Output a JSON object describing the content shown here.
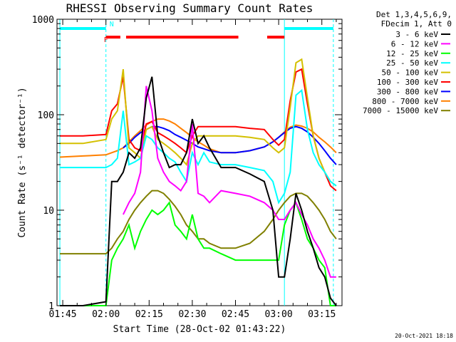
{
  "chart_data": {
    "type": "line",
    "title": "RHESSI Observing Summary Count Rates",
    "xlabel": "Start Time (28-Oct-02 01:43:22)",
    "ylabel": "Count Rate (s⁻¹ detector⁻¹)",
    "y_scale": "log",
    "ylim": [
      1,
      1000
    ],
    "xlim": [
      "01:43",
      "03:22"
    ],
    "x_ticks": [
      "01:45",
      "02:00",
      "02:15",
      "02:30",
      "02:45",
      "03:00",
      "03:15"
    ],
    "y_ticks": [
      "1",
      "10",
      "100",
      "1000"
    ],
    "legend_header": [
      "Det 1,3,4,5,6,9,",
      "FDecim 1, Att 0"
    ],
    "legend_position": "right",
    "grid": false,
    "series": [
      {
        "name": "3 - 6 keV",
        "color": "#000000",
        "x": [
          "01:44",
          "01:52",
          "02:00",
          "02:02",
          "02:04",
          "02:06",
          "02:08",
          "02:10",
          "02:12",
          "02:14",
          "02:16",
          "02:18",
          "02:20",
          "02:22",
          "02:24",
          "02:26",
          "02:28",
          "02:30",
          "02:32",
          "02:34",
          "02:36",
          "02:40",
          "02:45",
          "02:50",
          "02:55",
          "02:58",
          "03:00",
          "03:02",
          "03:04",
          "03:06",
          "03:08",
          "03:10",
          "03:12",
          "03:14",
          "03:16",
          "03:18",
          "03:20"
        ],
        "y": [
          1,
          1,
          1.1,
          20,
          20,
          25,
          40,
          35,
          45,
          150,
          250,
          60,
          40,
          28,
          30,
          30,
          40,
          90,
          50,
          60,
          45,
          28,
          28,
          24,
          20,
          10,
          2,
          2,
          5,
          15,
          10,
          6,
          4,
          2.5,
          2,
          1.2,
          1
        ]
      },
      {
        "name": "6 - 12 keV",
        "color": "#ff00ff",
        "x": [
          "01:44",
          "01:52",
          "02:00",
          "02:02",
          "02:04",
          "02:06",
          "02:08",
          "02:10",
          "02:12",
          "02:14",
          "02:16",
          "02:18",
          "02:20",
          "02:22",
          "02:24",
          "02:26",
          "02:28",
          "02:30",
          "02:32",
          "02:34",
          "02:36",
          "02:40",
          "02:45",
          "02:50",
          "02:55",
          "02:58",
          "03:00",
          "03:02",
          "03:04",
          "03:06",
          "03:08",
          "03:10",
          "03:12",
          "03:14",
          "03:16",
          "03:18",
          "03:20"
        ],
        "y": [
          null,
          null,
          null,
          null,
          null,
          9,
          12,
          15,
          25,
          200,
          110,
          35,
          25,
          20,
          18,
          16,
          20,
          80,
          15,
          14,
          12,
          16,
          15,
          14,
          12,
          10,
          8,
          8,
          10,
          12,
          9,
          7,
          5,
          4,
          3,
          2,
          2
        ]
      },
      {
        "name": "12 - 25 keV",
        "color": "#00ff00",
        "x": [
          "01:44",
          "01:52",
          "02:00",
          "02:02",
          "02:04",
          "02:06",
          "02:08",
          "02:10",
          "02:12",
          "02:14",
          "02:16",
          "02:18",
          "02:20",
          "02:22",
          "02:24",
          "02:26",
          "02:28",
          "02:30",
          "02:32",
          "02:34",
          "02:36",
          "02:40",
          "02:45",
          "02:50",
          "02:55",
          "02:58",
          "03:00",
          "03:02",
          "03:04",
          "03:06",
          "03:08",
          "03:10",
          "03:12",
          "03:14",
          "03:16",
          "03:18",
          "03:20"
        ],
        "y": [
          1,
          1,
          1,
          3,
          4,
          5,
          7,
          4,
          6,
          8,
          10,
          9,
          10,
          12,
          7,
          6,
          5,
          9,
          5,
          4,
          4,
          3.5,
          3,
          3,
          3,
          3,
          3,
          7,
          10,
          12,
          8,
          5,
          4,
          3,
          2.5,
          1,
          1
        ]
      },
      {
        "name": "25 - 50 keV",
        "color": "#00ffff",
        "x": [
          "01:44",
          "01:52",
          "02:00",
          "02:02",
          "02:04",
          "02:06",
          "02:08",
          "02:10",
          "02:12",
          "02:14",
          "02:16",
          "02:18",
          "02:20",
          "02:22",
          "02:24",
          "02:26",
          "02:28",
          "02:30",
          "02:32",
          "02:34",
          "02:36",
          "02:40",
          "02:45",
          "02:50",
          "02:55",
          "02:58",
          "03:00",
          "03:02",
          "03:04",
          "03:06",
          "03:08",
          "03:10",
          "03:12",
          "03:14",
          "03:16",
          "03:18",
          "03:20"
        ],
        "y": [
          28,
          28,
          28,
          30,
          35,
          110,
          30,
          32,
          35,
          60,
          55,
          45,
          40,
          35,
          32,
          25,
          20,
          40,
          30,
          40,
          32,
          30,
          30,
          28,
          26,
          20,
          12,
          15,
          25,
          160,
          180,
          70,
          40,
          30,
          25,
          20,
          18
        ]
      },
      {
        "name": "50 - 100 keV",
        "color": "#d4c000",
        "x": [
          "01:44",
          "01:52",
          "02:00",
          "02:02",
          "02:04",
          "02:06",
          "02:08",
          "02:10",
          "02:12",
          "02:14",
          "02:16",
          "02:18",
          "02:20",
          "02:22",
          "02:24",
          "02:26",
          "02:28",
          "02:30",
          "02:32",
          "02:34",
          "02:36",
          "02:40",
          "02:45",
          "02:50",
          "02:55",
          "02:58",
          "03:00",
          "03:02",
          "03:04",
          "03:06",
          "03:08",
          "03:10",
          "03:12",
          "03:14",
          "03:16",
          "03:18",
          "03:20"
        ],
        "y": [
          50,
          50,
          55,
          90,
          110,
          300,
          45,
          40,
          35,
          70,
          75,
          55,
          50,
          45,
          40,
          35,
          30,
          50,
          60,
          60,
          60,
          60,
          60,
          58,
          55,
          45,
          40,
          45,
          120,
          350,
          380,
          150,
          60,
          35,
          25,
          20,
          18
        ]
      },
      {
        "name": "100 - 300 keV",
        "color": "#ff0000",
        "x": [
          "01:44",
          "01:52",
          "02:00",
          "02:02",
          "02:04",
          "02:06",
          "02:08",
          "02:10",
          "02:12",
          "02:14",
          "02:16",
          "02:18",
          "02:20",
          "02:22",
          "02:24",
          "02:26",
          "02:28",
          "02:30",
          "02:32",
          "02:34",
          "02:36",
          "02:40",
          "02:45",
          "02:50",
          "02:55",
          "02:58",
          "03:00",
          "03:02",
          "03:04",
          "03:06",
          "03:08",
          "03:10",
          "03:12",
          "03:14",
          "03:16",
          "03:18",
          "03:20"
        ],
        "y": [
          60,
          60,
          62,
          110,
          130,
          250,
          55,
          45,
          42,
          80,
          85,
          65,
          60,
          55,
          50,
          45,
          40,
          60,
          75,
          75,
          75,
          75,
          75,
          72,
          70,
          55,
          48,
          55,
          140,
          280,
          300,
          130,
          60,
          35,
          25,
          18,
          16
        ]
      },
      {
        "name": "300 - 800 keV",
        "color": "#0000ff",
        "x": [
          "01:44",
          "01:52",
          "02:00",
          "02:02",
          "02:04",
          "02:06",
          "02:08",
          "02:10",
          "02:12",
          "02:14",
          "02:16",
          "02:18",
          "02:20",
          "02:22",
          "02:24",
          "02:26",
          "02:28",
          "02:30",
          "02:32",
          "02:34",
          "02:36",
          "02:40",
          "02:45",
          "02:50",
          "02:55",
          "02:58",
          "03:00",
          "03:02",
          "03:04",
          "03:06",
          "03:08",
          "03:10",
          "03:12",
          "03:14",
          "03:16",
          "03:18",
          "03:20"
        ],
        "y": [
          null,
          null,
          null,
          null,
          null,
          45,
          50,
          58,
          65,
          70,
          75,
          75,
          72,
          68,
          62,
          58,
          54,
          50,
          46,
          44,
          42,
          40,
          40,
          42,
          46,
          52,
          58,
          65,
          72,
          75,
          72,
          66,
          58,
          50,
          42,
          35,
          30
        ]
      },
      {
        "name": "800 - 7000 keV",
        "color": "#ff8000",
        "x": [
          "01:44",
          "01:52",
          "02:00",
          "02:02",
          "02:04",
          "02:06",
          "02:08",
          "02:10",
          "02:12",
          "02:14",
          "02:16",
          "02:18",
          "02:20",
          "02:22",
          "02:24",
          "02:26",
          "02:28",
          "02:30",
          "02:32",
          "02:34",
          "02:36",
          "02:40",
          "02:45",
          "02:50",
          "02:55",
          "02:58",
          "03:00",
          "03:02",
          "03:04",
          "03:06",
          "03:08",
          "03:10",
          "03:12",
          "03:14",
          "03:16",
          "03:18",
          "03:20"
        ],
        "y": [
          36,
          37,
          38,
          40,
          42,
          45,
          52,
          60,
          68,
          78,
          85,
          90,
          90,
          86,
          80,
          72,
          65,
          58,
          52,
          48,
          44,
          40,
          40,
          42,
          46,
          52,
          58,
          66,
          74,
          78,
          76,
          72,
          66,
          58,
          52,
          46,
          40
        ]
      },
      {
        "name": "7000 - 15000 keV",
        "color": "#808000",
        "x": [
          "01:44",
          "01:52",
          "02:00",
          "02:02",
          "02:04",
          "02:06",
          "02:08",
          "02:10",
          "02:12",
          "02:14",
          "02:16",
          "02:18",
          "02:20",
          "02:22",
          "02:24",
          "02:26",
          "02:28",
          "02:30",
          "02:32",
          "02:34",
          "02:36",
          "02:40",
          "02:45",
          "02:50",
          "02:55",
          "02:58",
          "03:00",
          "03:02",
          "03:04",
          "03:06",
          "03:08",
          "03:10",
          "03:12",
          "03:14",
          "03:16",
          "03:18",
          "03:20"
        ],
        "y": [
          3.5,
          3.5,
          3.5,
          4,
          5,
          6,
          8,
          10,
          12,
          14,
          16,
          16,
          15,
          13,
          11,
          9,
          7,
          6,
          5,
          5,
          4.5,
          4,
          4,
          4.5,
          6,
          8,
          10,
          12,
          14,
          15,
          15,
          14,
          12,
          10,
          8,
          6,
          5
        ]
      }
    ],
    "annotations": {
      "vertical_lines": [
        {
          "time": "01:44",
          "style": "solid",
          "color": "#00ffff"
        },
        {
          "time": "02:00",
          "style": "dashed",
          "color": "#00ffff"
        },
        {
          "time": "03:02",
          "style": "solid",
          "color": "#00ffff"
        },
        {
          "time": "03:19",
          "style": "dashed",
          "color": "#00ffff"
        }
      ],
      "night_bars": [
        {
          "start": "01:44",
          "end": "02:00",
          "level": 800,
          "color": "#00ffff"
        },
        {
          "start": "03:02",
          "end": "03:19",
          "level": 800,
          "color": "#00ffff"
        }
      ],
      "saa_bars": [
        {
          "start": "02:00",
          "end": "02:05",
          "level": 650,
          "color": "#ff0000"
        },
        {
          "start": "02:07",
          "end": "02:46",
          "level": 650,
          "color": "#ff0000"
        },
        {
          "start": "02:56",
          "end": "03:02",
          "level": 650,
          "color": "#ff0000"
        }
      ],
      "letters": [
        {
          "text": "N",
          "time": "02:02",
          "level": 900,
          "color": "#00ffff"
        },
        {
          "text": "F",
          "time": "02:00",
          "level": 620,
          "color": "#ff0000"
        }
      ]
    },
    "timestamp": "20-Oct-2021 18:18"
  }
}
